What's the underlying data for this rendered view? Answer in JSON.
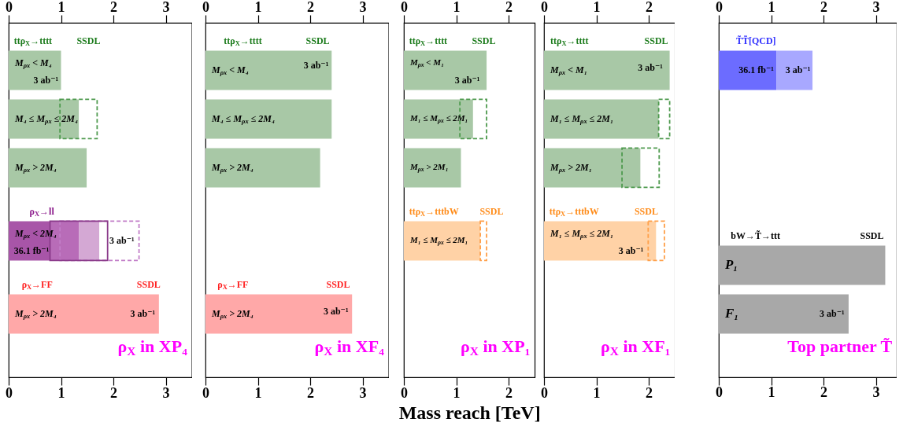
{
  "chart_data": [
    {
      "type": "bar",
      "orientation": "horizontal",
      "title": "ρ$_{X}$ in XP₄",
      "categories": [
        "M$_{ρx}$ < M₄",
        null,
        "M₄ ≤ M$_{ρx}$ ≤ 2M₄",
        null,
        "M$_{ρx}$ > 2M₄",
        null,
        null,
        "M$_{ρx}$ < 2M₄",
        null,
        null,
        "M$_{ρx}$ > 2M₄"
      ],
      "series": [
        {
          "color": "#a8c8a6",
          "values": [
            1.0,
            null,
            1.34,
            null,
            1.49,
            null,
            null,
            null,
            null,
            null,
            null
          ]
        },
        {
          "color": "#4e9a4e",
          "line_style": "dashed",
          "base": [
            null,
            null,
            0.98,
            null,
            null,
            null,
            null,
            null,
            null,
            null,
            null
          ],
          "values": [
            null,
            null,
            0.71,
            null,
            null,
            null,
            null,
            null,
            null,
            null,
            null
          ]
        },
        {
          "color": "#a855a8",
          "values": [
            null,
            null,
            null,
            null,
            null,
            null,
            null,
            0.79,
            null,
            null,
            null
          ]
        },
        {
          "color": "#b86cb8",
          "base": [
            null,
            null,
            null,
            null,
            null,
            null,
            null,
            0.79,
            null,
            null,
            null
          ],
          "values": [
            null,
            null,
            null,
            null,
            null,
            null,
            null,
            0.55,
            null,
            null,
            null
          ]
        },
        {
          "color": "#d4a8d4",
          "base": [
            null,
            null,
            null,
            null,
            null,
            null,
            null,
            1.34,
            null,
            null,
            null
          ],
          "values": [
            null,
            null,
            null,
            null,
            null,
            null,
            null,
            0.39,
            null,
            null,
            null
          ]
        },
        {
          "color": "#8a3a8a",
          "line_style": "solid",
          "base": [
            null,
            null,
            null,
            null,
            null,
            null,
            null,
            0.79,
            null,
            null,
            null
          ],
          "values": [
            null,
            null,
            null,
            null,
            null,
            null,
            null,
            1.1,
            null,
            null,
            null
          ]
        },
        {
          "color": "#c27ec8",
          "line_style": "dashed",
          "base": [
            null,
            null,
            null,
            null,
            null,
            null,
            null,
            0.98,
            null,
            null,
            null
          ],
          "values": [
            null,
            null,
            null,
            null,
            null,
            null,
            null,
            1.51,
            null,
            null,
            null
          ]
        },
        {
          "color": "#ffa8a8",
          "values": [
            null,
            null,
            null,
            null,
            null,
            null,
            null,
            null,
            null,
            null,
            2.87
          ]
        }
      ],
      "annotations": [
        "ttρ$_{X}$→tttt",
        "SSDL",
        "3 ab⁻¹",
        "ρ$_{X}$→ll",
        "36.1 fb⁻¹",
        "3 ab⁻¹",
        "ρ$_{X}$→FF",
        "SSDL",
        "3 ab⁻¹"
      ],
      "xlim": [
        0,
        3.5
      ],
      "xticks": [
        0,
        1,
        2,
        3
      ],
      "x2lim": [
        0,
        3.5
      ],
      "x2ticks": [
        0,
        1,
        2,
        3
      ]
    },
    {
      "type": "bar",
      "orientation": "horizontal",
      "title": "ρ$_{X}$ in XF₄",
      "categories": [
        "M$_{ρx}$ < M₄",
        null,
        "M₄ ≤ M$_{ρx}$ ≤ 2M₄",
        null,
        "M$_{ρx}$ > 2M₄",
        null,
        null,
        null,
        null,
        null,
        "M$_{ρx}$ > 2M₄"
      ],
      "series": [
        {
          "color": "#a8c8a6",
          "values": [
            2.41,
            null,
            2.41,
            null,
            2.19,
            null,
            null,
            null,
            null,
            null,
            null
          ]
        },
        {
          "color": "#ffa8a8",
          "values": [
            null,
            null,
            null,
            null,
            null,
            null,
            null,
            null,
            null,
            null,
            2.8
          ]
        }
      ],
      "annotations": [
        "ttρ$_{X}$→tttt",
        "SSDL",
        "3 ab⁻¹",
        "ρ$_{X}$→FF",
        "SSDL",
        "3 ab⁻¹"
      ],
      "xlim": [
        0,
        3.5
      ],
      "xticks": [
        0,
        1,
        2,
        3
      ],
      "x2lim": [
        0,
        3.5
      ],
      "x2ticks": [
        0,
        1,
        2,
        3
      ]
    },
    {
      "type": "bar",
      "orientation": "horizontal",
      "title": "ρ$_{X}$ in XP₁",
      "xlabel": "Mass reach  [TeV]",
      "categories": [
        "M$_{ρx}$ < M₁",
        null,
        "M₁ ≤ M$_{ρx}$ ≤ 2M₁",
        null,
        "M$_{ρx}$ > 2M₁",
        null,
        null,
        "M₁ ≤ M$_{ρx}$ ≤ 2M₁",
        null,
        null,
        null
      ],
      "series": [
        {
          "color": "#a8c8a6",
          "values": [
            1.58,
            null,
            1.32,
            null,
            1.09,
            null,
            null,
            null,
            null,
            null,
            null
          ]
        },
        {
          "color": "#4e9a4e",
          "line_style": "dashed",
          "base": [
            null,
            null,
            1.07,
            null,
            null,
            null,
            null,
            null,
            null,
            null,
            null
          ],
          "values": [
            null,
            null,
            0.51,
            null,
            null,
            null,
            null,
            null,
            null,
            null,
            null
          ]
        },
        {
          "color": "#ffd2a6",
          "values": [
            null,
            null,
            null,
            null,
            null,
            null,
            null,
            1.46,
            null,
            null,
            null
          ]
        },
        {
          "color": "#ffa04a",
          "line_style": "dashed",
          "base": [
            null,
            null,
            null,
            null,
            null,
            null,
            null,
            1.46,
            null,
            null,
            null
          ],
          "values": [
            null,
            null,
            null,
            null,
            null,
            null,
            null,
            0.12,
            null,
            null,
            null
          ]
        }
      ],
      "annotations": [
        "ttρ$_{X}$→tttt",
        "SSDL",
        "3 ab⁻¹",
        "ttρ$_{X}$→tttbW",
        "SSDL"
      ],
      "xlim": [
        0,
        2.5
      ],
      "xticks": [
        0,
        1,
        2
      ],
      "x2lim": [
        0,
        2.5
      ],
      "x2ticks": [
        0,
        1,
        2
      ]
    },
    {
      "type": "bar",
      "orientation": "horizontal",
      "title": "ρ$_{X}$ in XF₁",
      "categories": [
        "M$_{ρx}$ < M₁",
        null,
        "M₁ ≤ M$_{ρx}$ ≤ 2M₁",
        null,
        "M$_{ρx}$ > 2M₁",
        null,
        null,
        "M₁ ≤ M$_{ρx}$ ≤ 2M₁",
        null,
        null,
        null
      ],
      "series": [
        {
          "color": "#a8c8a6",
          "values": [
            2.4,
            null,
            2.19,
            null,
            1.84,
            null,
            null,
            null,
            null,
            null,
            null
          ]
        },
        {
          "color": "#4e9a4e",
          "line_style": "dashed",
          "base": [
            null,
            null,
            2.19,
            null,
            1.49,
            null,
            null,
            null,
            null,
            null,
            null
          ],
          "values": [
            null,
            null,
            0.21,
            null,
            0.71,
            null,
            null,
            null,
            null,
            null,
            null
          ]
        },
        {
          "color": "#ffd2a6",
          "values": [
            null,
            null,
            null,
            null,
            null,
            null,
            null,
            2.14,
            null,
            null,
            null
          ]
        },
        {
          "color": "#ffa04a",
          "line_style": "dashed",
          "base": [
            null,
            null,
            null,
            null,
            null,
            null,
            null,
            1.99,
            null,
            null,
            null
          ],
          "values": [
            null,
            null,
            null,
            null,
            null,
            null,
            null,
            0.31,
            null,
            null,
            null
          ]
        }
      ],
      "annotations": [
        "ttρ$_{X}$→tttt",
        "SSDL",
        "3 ab⁻¹",
        "ttρ$_{X}$→tttbW",
        "SSDL",
        "3 ab⁻¹"
      ],
      "xlim": [
        0,
        2.5
      ],
      "xticks": [
        0,
        1,
        2
      ],
      "x2lim": [
        0,
        2.5
      ],
      "x2ticks": [
        0,
        1,
        2
      ]
    },
    {
      "type": "bar",
      "orientation": "horizontal",
      "title": "Top partner T̃",
      "categories": [
        null,
        null,
        null,
        null,
        null,
        null,
        null,
        null,
        "P₁",
        null,
        "F₁"
      ],
      "series": [
        {
          "color": "#6c6cff",
          "values": [
            1.1,
            null,
            null,
            null,
            null,
            null,
            null,
            null,
            null,
            null,
            null
          ]
        },
        {
          "color": "#a8a8ff",
          "base": [
            1.1,
            null,
            null,
            null,
            null,
            null,
            null,
            null,
            null,
            null,
            null
          ],
          "values": [
            0.69,
            null,
            null,
            null,
            null,
            null,
            null,
            null,
            null,
            null,
            null
          ]
        },
        {
          "color": "#a8a8a8",
          "values": [
            null,
            null,
            null,
            null,
            null,
            null,
            null,
            null,
            3.18,
            null,
            2.48
          ]
        }
      ],
      "annotations": [
        "T̃T̃[QCD]",
        "36.1 fb⁻¹",
        "3 ab⁻¹",
        "bW→T̃→ttt",
        "SSDL",
        "3 ab⁻¹"
      ],
      "xlim": [
        0,
        3.4
      ],
      "xticks": [
        0,
        1,
        2,
        3
      ],
      "x2lim": [
        0,
        3.4
      ],
      "x2ticks": [
        0,
        1,
        2,
        3
      ]
    }
  ]
}
